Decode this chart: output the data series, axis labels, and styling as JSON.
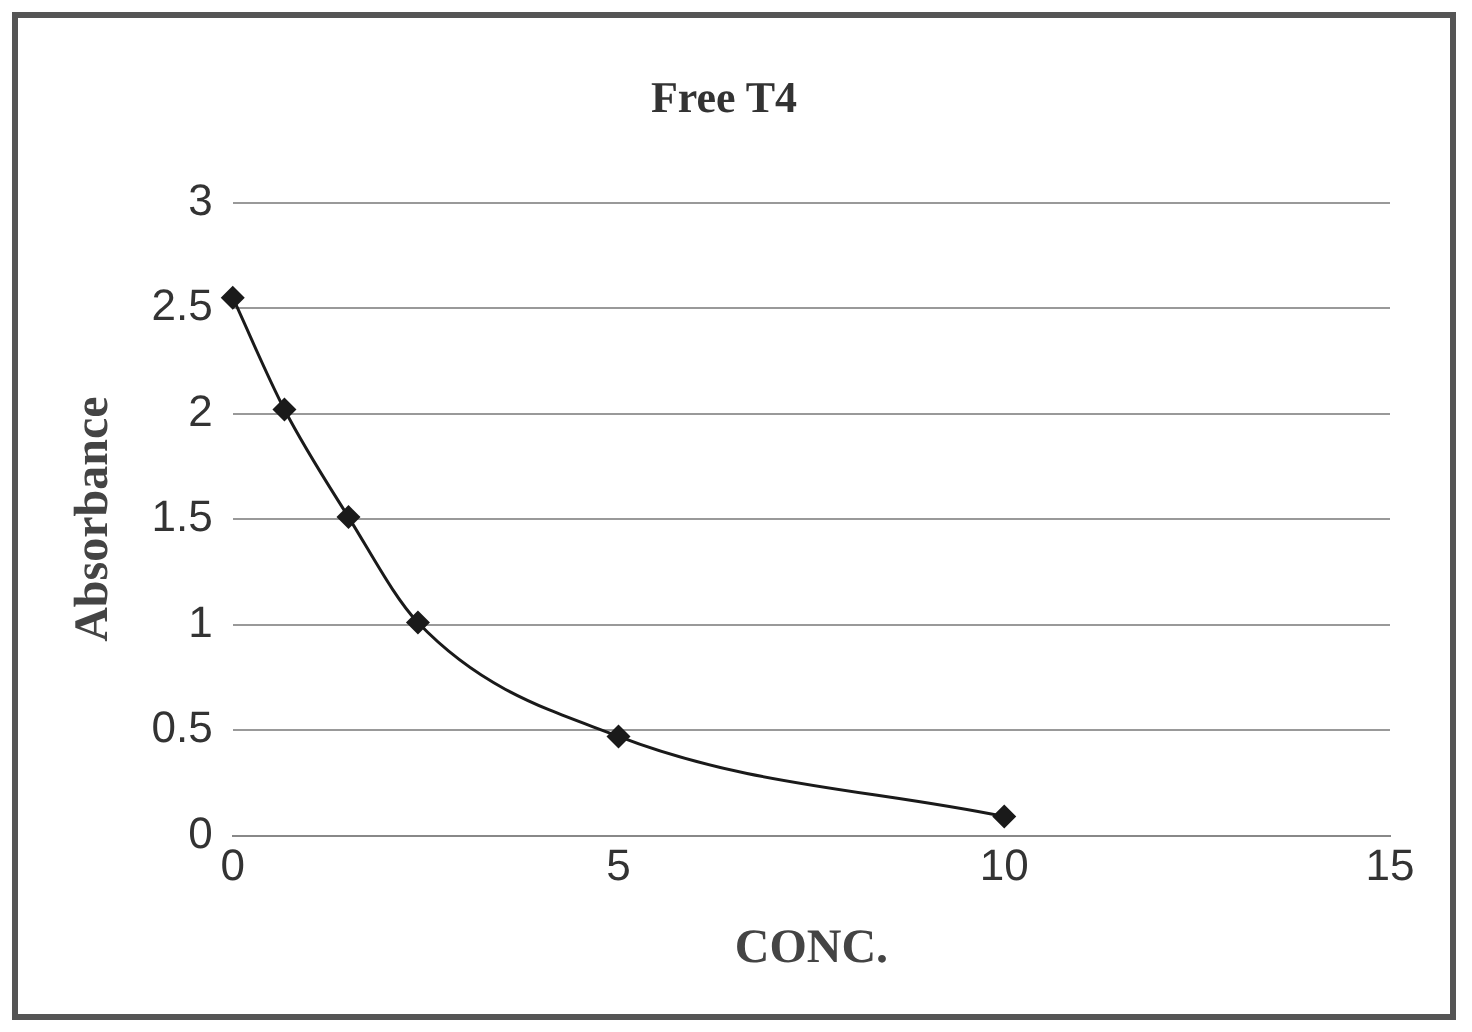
{
  "chart_data": {
    "type": "line",
    "title": "Free T4",
    "xlabel": "CONC.",
    "ylabel": "Absorbance",
    "x": [
      0,
      0.67,
      1.5,
      2.4,
      5,
      10
    ],
    "series": [
      {
        "color": "#1a1a1a",
        "values": [
          2.55,
          2.02,
          1.51,
          1.01,
          0.47,
          0.09
        ]
      }
    ],
    "xlim": [
      0,
      15
    ],
    "xticks": [
      0,
      5,
      10,
      15
    ],
    "ylim": [
      0,
      3
    ],
    "yticks": [
      0,
      0.5,
      1,
      1.5,
      2,
      2.5,
      3
    ],
    "grid": "y",
    "legend": false,
    "marker": "diamond",
    "line_style": "solid"
  }
}
